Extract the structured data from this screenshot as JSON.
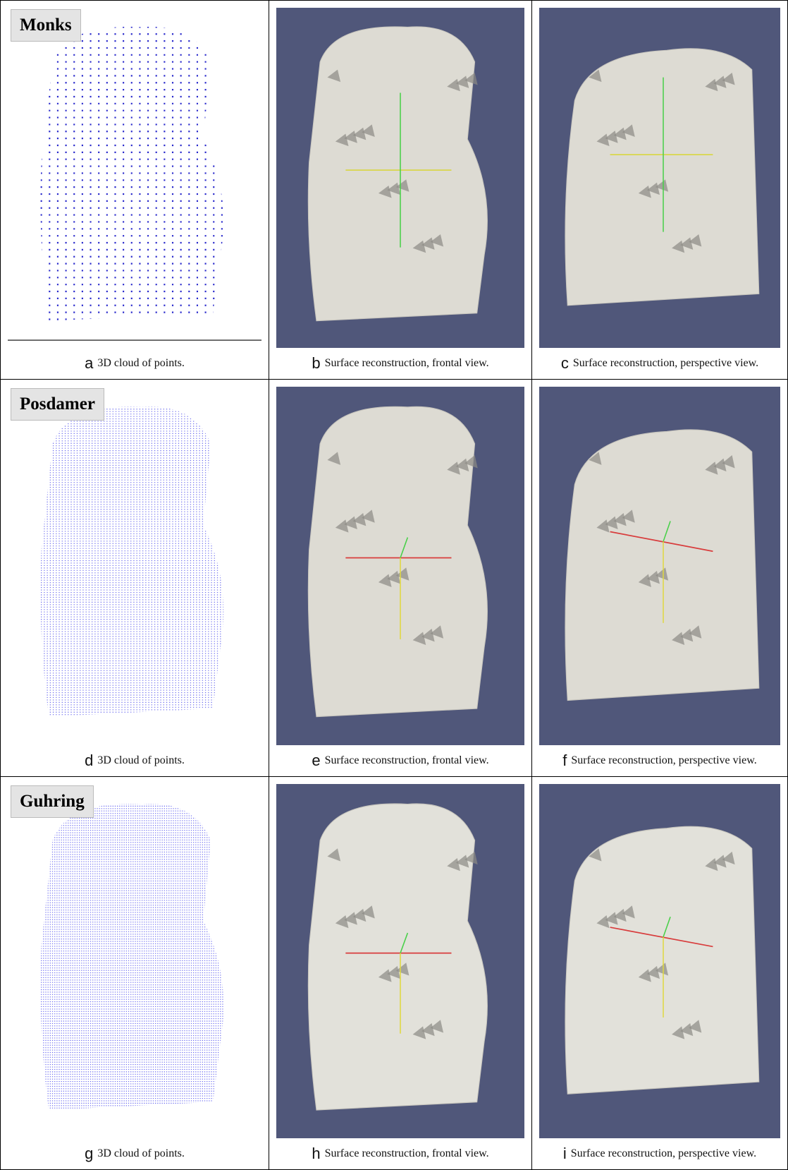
{
  "rows": [
    {
      "label": "Monks",
      "panels": [
        {
          "letter": "a",
          "caption": "3D cloud of points."
        },
        {
          "letter": "b",
          "caption": "Surface reconstruction, frontal view."
        },
        {
          "letter": "c",
          "caption": "Surface reconstruction, perspective view."
        }
      ]
    },
    {
      "label": "Posdamer",
      "panels": [
        {
          "letter": "d",
          "caption": "3D cloud of points."
        },
        {
          "letter": "e",
          "caption": "Surface reconstruction, frontal view."
        },
        {
          "letter": "f",
          "caption": "Surface reconstruction, perspective view."
        }
      ]
    },
    {
      "label": "Guhring",
      "panels": [
        {
          "letter": "g",
          "caption": "3D cloud of points."
        },
        {
          "letter": "h",
          "caption": "Surface reconstruction, frontal view."
        },
        {
          "letter": "i",
          "caption": "Surface reconstruction, perspective view."
        }
      ]
    }
  ]
}
